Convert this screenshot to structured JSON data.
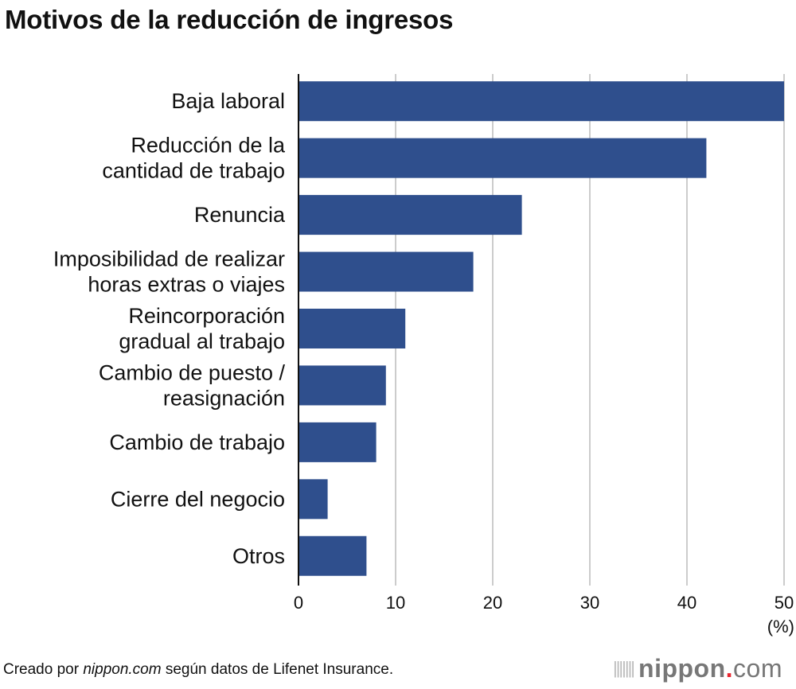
{
  "chart_data": {
    "type": "bar",
    "orientation": "horizontal",
    "title": "Motivos de la reducción de ingresos",
    "categories": [
      [
        "Baja laboral"
      ],
      [
        "Reducción de la",
        "cantidad de trabajo"
      ],
      [
        "Renuncia"
      ],
      [
        "Imposibilidad de realizar",
        "horas extras o viajes"
      ],
      [
        "Reincorporación",
        "gradual al trabajo"
      ],
      [
        "Cambio de puesto /",
        "reasignación"
      ],
      [
        "Cambio de trabajo"
      ],
      [
        "Cierre del negocio"
      ],
      [
        "Otros"
      ]
    ],
    "values": [
      50,
      42,
      23,
      18,
      11,
      9,
      8,
      3,
      7
    ],
    "xlim": [
      0,
      50
    ],
    "xticks": [
      0,
      10,
      20,
      30,
      40,
      50
    ],
    "xunit": "(%)",
    "grid": "vertical",
    "bar_color": "#2f4f8d",
    "grid_color": "#cccccc"
  },
  "footer": {
    "prefix": "Creado por ",
    "source_site": "nippon.com",
    "suffix": " según datos de Lifenet Insurance."
  },
  "logo": {
    "name": "nippon",
    "dot": ".",
    "tld": "com"
  }
}
